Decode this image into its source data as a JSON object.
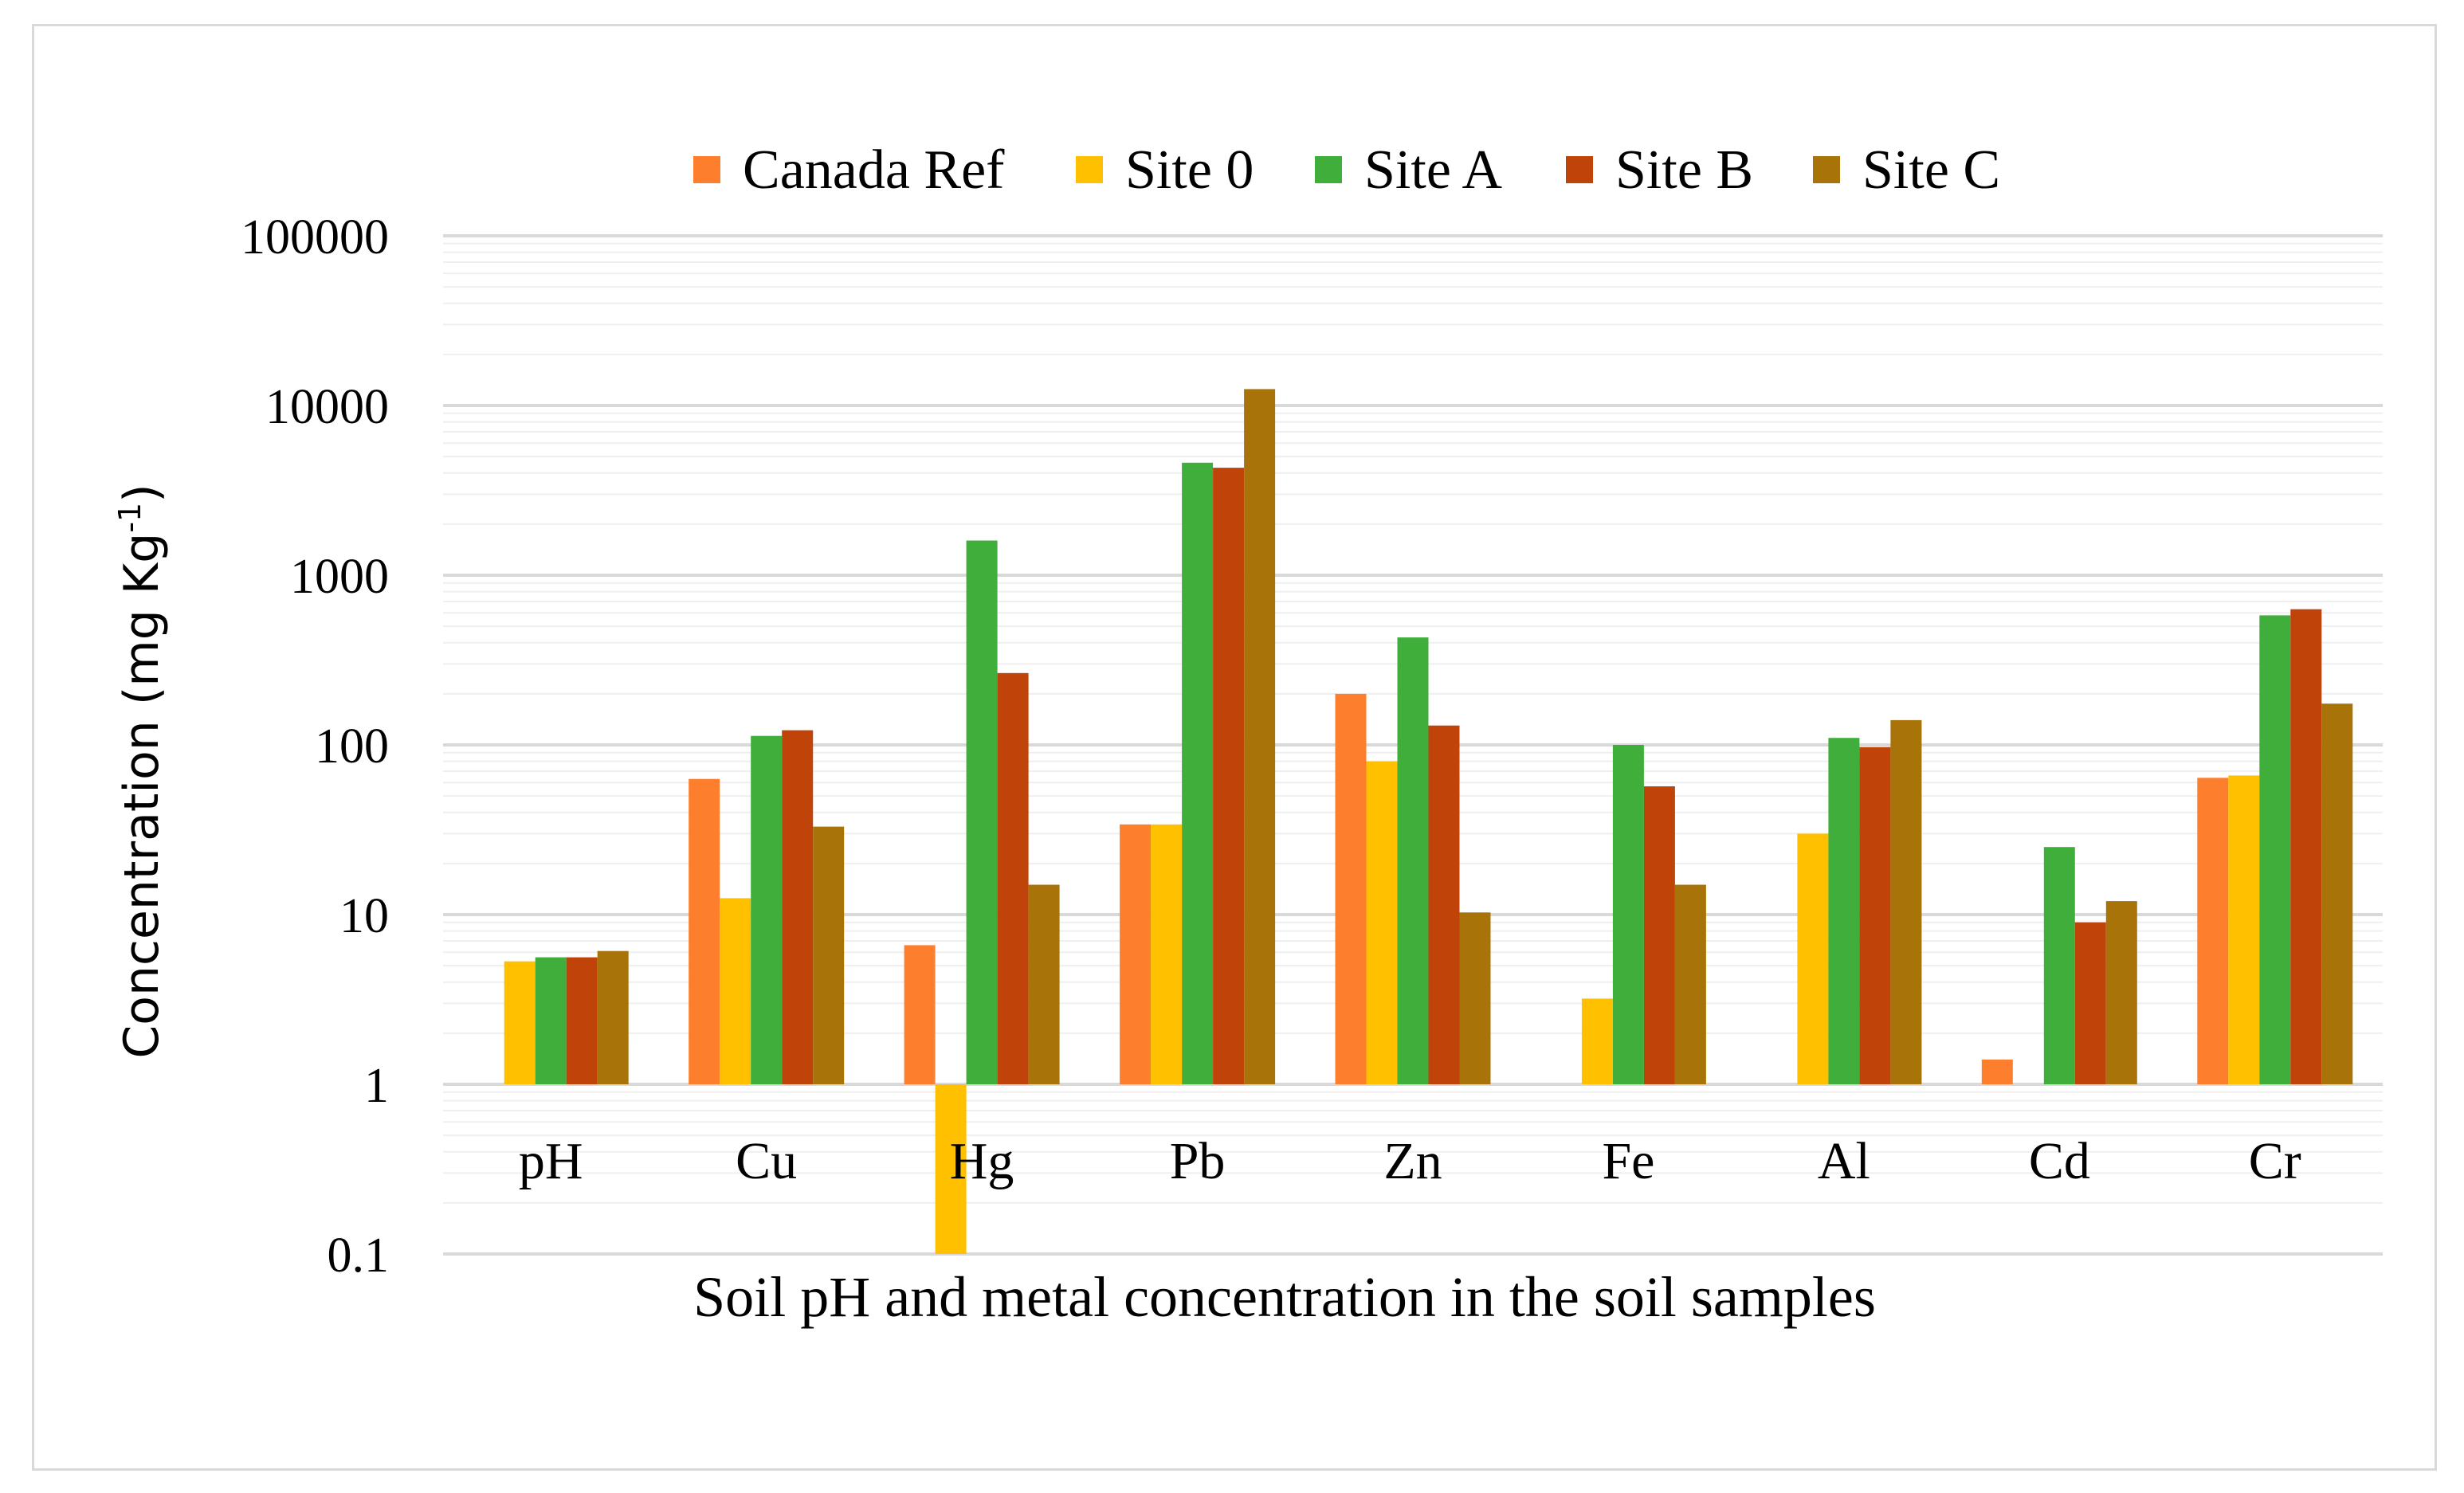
{
  "chart_data": {
    "type": "bar",
    "scale": "log10",
    "title": "",
    "xlabel": "Soil pH and metal concentration in the soil samples",
    "ylabel": "Concentration (mg Kg",
    "ylabel_superscript": "-1",
    "ylabel_close": ")",
    "ylim": [
      0.1,
      100000
    ],
    "yticks": [
      "0.1",
      "1",
      "10",
      "100",
      "1000",
      "10000",
      "100000"
    ],
    "ytick_values": [
      0.1,
      1,
      10,
      100,
      1000,
      10000,
      100000
    ],
    "grid": "horizontal major and minor",
    "legend_position": "top",
    "categories": [
      "pH",
      "Cu",
      "Hg",
      "Pb",
      "Zn",
      "Fe",
      "Al",
      "Cd",
      "Cr"
    ],
    "series": [
      {
        "name": "Canada Ref",
        "color": "#fd7f2d",
        "values": [
          null,
          63,
          6.6,
          34,
          200,
          null,
          null,
          1.4,
          64
        ]
      },
      {
        "name": "Site 0",
        "color": "#ffc000",
        "values": [
          5.3,
          12.5,
          0.1,
          34,
          80,
          3.2,
          30,
          null,
          66
        ]
      },
      {
        "name": "Site A",
        "color": "#40ae3b",
        "values": [
          5.6,
          113,
          1600,
          4600,
          430,
          100,
          110,
          25,
          580
        ]
      },
      {
        "name": "Site B",
        "color": "#c0430a",
        "values": [
          5.6,
          122,
          265,
          4300,
          130,
          57,
          97,
          9,
          630
        ]
      },
      {
        "name": "Site C",
        "color": "#a8740a",
        "values": [
          6.1,
          33,
          15,
          12500,
          10.3,
          15,
          140,
          12,
          175
        ]
      }
    ]
  }
}
